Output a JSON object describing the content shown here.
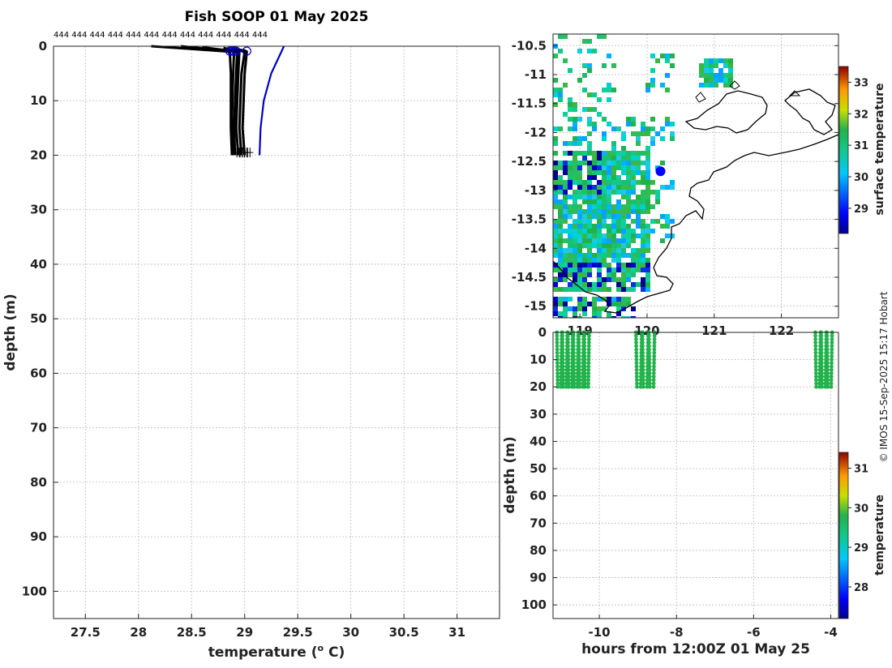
{
  "title": "Fish SOOP 01 May 2025",
  "profile_labels": "444 444 444 444 444 444 444 444 444 444 444 444",
  "credit": "© IMOS 15-Sep-2025 15:17 Hobart",
  "chart_data": [
    {
      "id": "profile",
      "type": "line",
      "title": "Fish SOOP 01 May 2025",
      "xlabel": "temperature (o C)",
      "ylabel": "depth (m)",
      "xlim": [
        27.2,
        31.4
      ],
      "ylim": [
        105,
        0
      ],
      "xticks": [
        27.5,
        28,
        28.5,
        29,
        29.5,
        30,
        30.5,
        31
      ],
      "xtick_labels": [
        "27.5",
        "28",
        "28.5",
        "29",
        "29.5",
        "30",
        "30.5",
        "31"
      ],
      "yticks": [
        0,
        10,
        20,
        30,
        40,
        50,
        60,
        70,
        80,
        90,
        100
      ],
      "ytick_labels": [
        "0",
        "10",
        "20",
        "30",
        "40",
        "50",
        "60",
        "70",
        "80",
        "90",
        "100"
      ],
      "grid": true,
      "series": [
        {
          "name": "profile-1",
          "color": "#000000",
          "temperature": [
            28.12,
            28.5,
            28.86,
            28.87,
            28.87,
            28.88
          ],
          "depth": [
            0,
            0.5,
            1,
            5,
            15,
            20
          ]
        },
        {
          "name": "profile-2",
          "color": "#000000",
          "temperature": [
            28.4,
            28.75,
            28.9,
            28.89,
            28.88,
            28.89
          ],
          "depth": [
            0,
            0.7,
            1,
            6,
            14,
            20
          ]
        },
        {
          "name": "profile-3",
          "color": "#000000",
          "temperature": [
            28.6,
            28.85,
            28.93,
            28.92,
            28.9,
            28.91
          ],
          "depth": [
            0.2,
            0.8,
            1,
            5,
            15,
            20
          ]
        },
        {
          "name": "profile-4",
          "color": "#000000",
          "temperature": [
            28.8,
            28.9,
            28.95,
            28.94,
            28.92,
            28.94
          ],
          "depth": [
            0.3,
            0.8,
            1,
            5,
            15,
            20
          ]
        },
        {
          "name": "profile-5",
          "color": "#000000",
          "temperature": [
            28.88,
            28.95,
            29.0,
            28.97,
            28.95,
            28.97
          ],
          "depth": [
            0.4,
            0.8,
            1,
            5,
            15,
            20
          ]
        },
        {
          "name": "profile-6",
          "color": "#000000",
          "temperature": [
            28.9,
            29.0,
            29.02,
            29.0,
            28.98,
            29.0
          ],
          "depth": [
            0.5,
            0.8,
            1,
            5,
            15,
            20
          ]
        },
        {
          "name": "current-profile",
          "color": "#0000cc",
          "temperature": [
            29.37,
            29.25,
            29.18,
            29.15,
            29.14
          ],
          "depth": [
            0,
            5,
            10,
            15,
            20
          ]
        }
      ],
      "surface_markers": [
        28.86,
        28.88,
        28.9,
        28.92,
        29.02
      ],
      "bottom_markers": [
        28.95,
        28.98,
        29.0,
        29.02,
        29.05
      ]
    },
    {
      "id": "map",
      "type": "heatmap",
      "xlim": [
        118.6,
        122.85
      ],
      "ylim": [
        -15.2,
        -10.3
      ],
      "yticks": [
        -10.5,
        -11,
        -11.5,
        -12,
        -12.5,
        -13,
        -13.5,
        -14,
        -14.5,
        -15
      ],
      "ytick_labels": [
        "-10.5",
        "-11",
        "-11.5",
        "-12",
        "-12.5",
        "-13",
        "-13.5",
        "-14",
        "-14.5",
        "-15"
      ],
      "xticks": [
        119,
        120,
        121,
        122
      ],
      "xtick_labels": [
        "119",
        "120",
        "121",
        "122"
      ],
      "colorbar_label": "surface temperature",
      "colorbar_ticks": [
        29,
        30,
        31,
        32,
        33
      ],
      "colorbar_range": [
        28.2,
        33.5
      ],
      "vessel_position": {
        "lon": 120.2,
        "lat": -12.67
      }
    },
    {
      "id": "timeseries",
      "type": "scatter",
      "xlabel": "hours from 12:00Z 01 May 25",
      "ylabel": "depth (m)",
      "xlim": [
        -11.2,
        -3.8
      ],
      "ylim": [
        105,
        0
      ],
      "xticks": [
        -10,
        -8,
        -6,
        -4
      ],
      "xtick_labels": [
        "-10",
        "-8",
        "-6",
        "-4"
      ],
      "yticks": [
        0,
        10,
        20,
        30,
        40,
        50,
        60,
        70,
        80,
        90,
        100
      ],
      "ytick_labels": [
        "0",
        "10",
        "20",
        "30",
        "40",
        "50",
        "60",
        "70",
        "80",
        "90",
        "100"
      ],
      "colorbar_label": "temperature",
      "colorbar_ticks": [
        28,
        29,
        30,
        31
      ],
      "colorbar_range": [
        27.2,
        31.4
      ],
      "profile_groups": [
        {
          "start": -11.1,
          "end": -10.25,
          "count": 12
        },
        {
          "start": -9.05,
          "end": -8.55,
          "count": 6
        },
        {
          "start": -4.4,
          "end": -3.95,
          "count": 6
        }
      ],
      "max_depth": 20,
      "color": "#22b24c"
    }
  ]
}
